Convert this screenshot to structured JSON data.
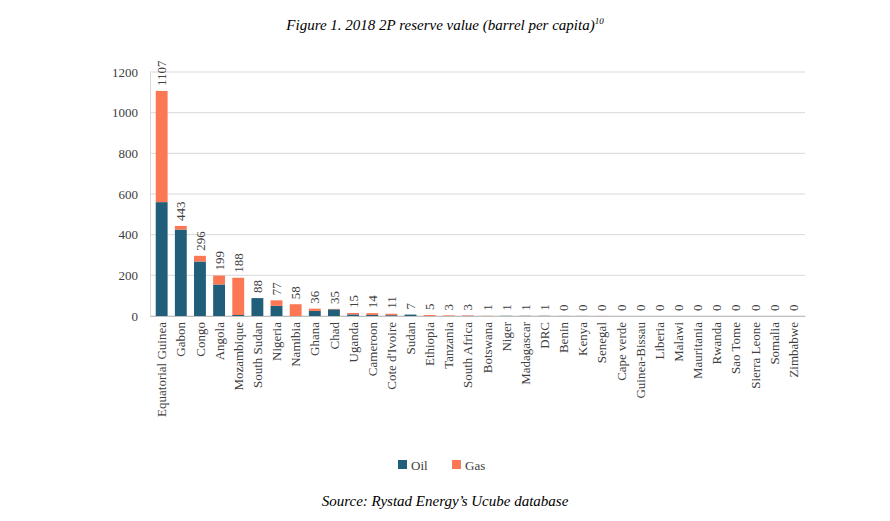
{
  "chart_data": {
    "type": "bar",
    "stacked": true,
    "title": "Figure 1. 2018 2P reserve value (barrel per capita)",
    "title_footnote": "10",
    "source": "Source: Rystad Energy’s Ucube database",
    "categories": [
      "Equatorial Guinea",
      "Gabon",
      "Congo",
      "Angola",
      "Mozambique",
      "South Sudan",
      "Nigeria",
      "Namibia",
      "Ghana",
      "Chad",
      "Uganda",
      "Cameroon",
      "Cote d'Ivoire",
      "Sudan",
      "Ethiopia",
      "Tanzania",
      "South Africa",
      "Botswana",
      "Niger",
      "Madagascar",
      "DRC",
      "Benin",
      "Kenya",
      "Senegal",
      "Cape verde",
      "Guinea-Bissau",
      "Liberia",
      "Malawi",
      "Mauritania",
      "Rwanda",
      "Sao Tome",
      "Sierra Leone",
      "Somalia",
      "Zimbabwe"
    ],
    "series": [
      {
        "name": "Oil",
        "color": "#215e7a",
        "values": [
          560,
          425,
          268,
          155,
          5,
          88,
          50,
          0,
          25,
          33,
          8,
          5,
          4,
          7,
          0,
          0,
          0.5,
          0,
          1,
          1,
          1,
          0.4,
          0.4,
          0,
          0,
          0,
          0,
          0,
          0,
          0,
          0,
          0,
          0,
          0
        ]
      },
      {
        "name": "Gas",
        "color": "#fc7753",
        "values": [
          547,
          18,
          28,
          44,
          183,
          0,
          27,
          58,
          11,
          2,
          7,
          9,
          7,
          0,
          5,
          3,
          2.5,
          1,
          0,
          0,
          0,
          0,
          0,
          0.4,
          0,
          0,
          0,
          0,
          0,
          0,
          0,
          0,
          0,
          0
        ]
      }
    ],
    "totals": [
      1107,
      443,
      296,
      199,
      188,
      88,
      77,
      58,
      36,
      35,
      15,
      14,
      11,
      7,
      5,
      3,
      3,
      1,
      1,
      1,
      1,
      0,
      0,
      0,
      0,
      0,
      0,
      0,
      0,
      0,
      0,
      0,
      0,
      0
    ],
    "ylim": [
      0,
      1200
    ],
    "yticks": [
      0,
      200,
      400,
      600,
      800,
      1000,
      1200
    ],
    "grid": true,
    "legend": "bottom"
  }
}
